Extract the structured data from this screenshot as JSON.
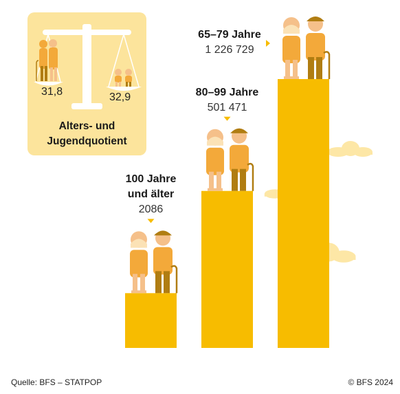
{
  "chart_data": {
    "type": "bar",
    "categories": [
      "100 Jahre und älter",
      "80–99 Jahre",
      "65–79 Jahre"
    ],
    "category_lines": [
      [
        "100 Jahre",
        "und älter"
      ],
      [
        "80–99 Jahre"
      ],
      [
        "65–79 Jahre"
      ]
    ],
    "value_labels": [
      "2086",
      "501 471",
      "1 226 729"
    ],
    "values": [
      2086,
      501471,
      1226729
    ],
    "bar_color": "#f7bc00"
  },
  "ratio_card": {
    "title_line1": "Alters- und",
    "title_line2": "Jugendquotient",
    "old_age_ratio": "31,8",
    "youth_ratio": "32,9",
    "background_color": "#fce49c",
    "scale_icon": "balance-scale-icon"
  },
  "footer": {
    "source": "Quelle: BFS – STATPOP",
    "copyright": "© BFS 2024"
  }
}
